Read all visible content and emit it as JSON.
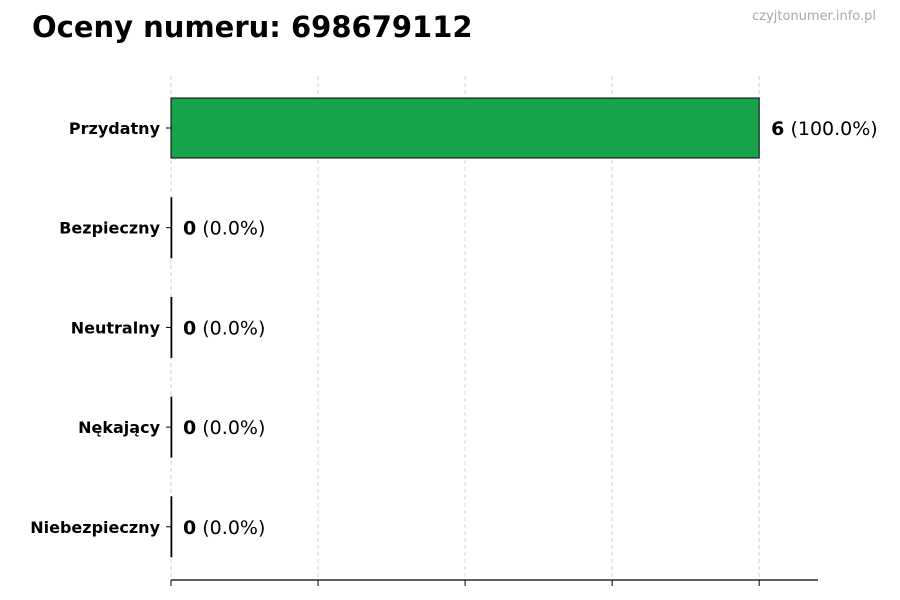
{
  "title": "Oceny numeru: 698679112",
  "watermark": "czyjtonumer.info.pl",
  "chart_data": {
    "type": "bar",
    "orientation": "horizontal",
    "categories": [
      "Przydatny",
      "Bezpieczny",
      "Neutralny",
      "Nękający",
      "Niebezpieczny"
    ],
    "values": [
      6,
      0,
      0,
      0,
      0
    ],
    "percent_labels": [
      "(100.0%)",
      "(0.0%)",
      "(0.0%)",
      "(0.0%)",
      "(0.0%)"
    ],
    "xlim": [
      0,
      6.6
    ],
    "xticks": [
      0,
      1.5,
      3,
      4.5,
      6
    ],
    "xtick_labels_shown": false,
    "grid": "vertical dashed",
    "colors": {
      "bar": "#16a34a",
      "edge": "#000000",
      "grid": "#d0d0d0"
    }
  }
}
